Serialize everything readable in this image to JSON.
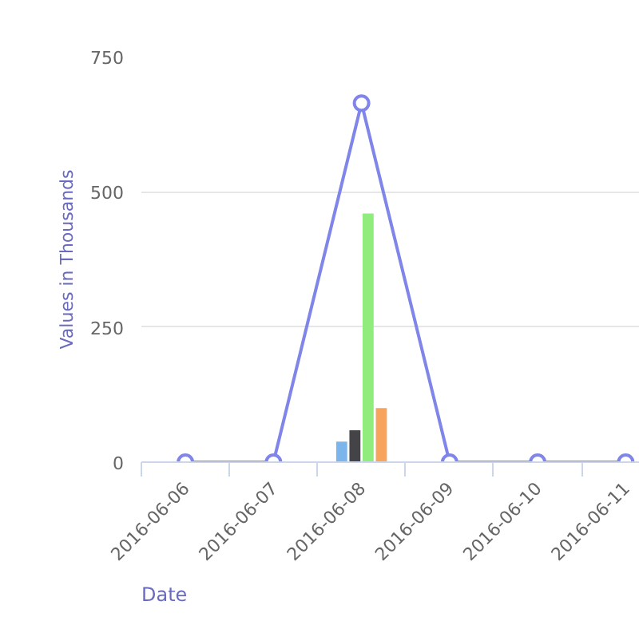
{
  "chart_data": {
    "type": "bar",
    "xlabel": "Date",
    "ylabel": "Values in Thousands",
    "categories": [
      "2016-06-06",
      "2016-06-07",
      "2016-06-08",
      "2016-06-09",
      "2016-06-10",
      "2016-06-11"
    ],
    "ylim": [
      0,
      750
    ],
    "yticks": [
      0,
      250,
      500,
      750
    ],
    "grid": "y",
    "marker": "circle",
    "series": [
      {
        "color": "#7cb5ec",
        "values": [
          null,
          null,
          38,
          null,
          null,
          null
        ]
      },
      {
        "color": "#434348",
        "values": [
          null,
          null,
          59,
          null,
          null,
          null
        ]
      },
      {
        "color": "#90ed7d",
        "values": [
          null,
          null,
          460,
          null,
          null,
          null
        ]
      },
      {
        "color": "#f7a35c",
        "values": [
          null,
          null,
          100,
          null,
          null,
          null
        ]
      },
      {
        "type": "line",
        "color": "#8085e9",
        "values": [
          0,
          0,
          664,
          0,
          0,
          0
        ]
      }
    ]
  }
}
